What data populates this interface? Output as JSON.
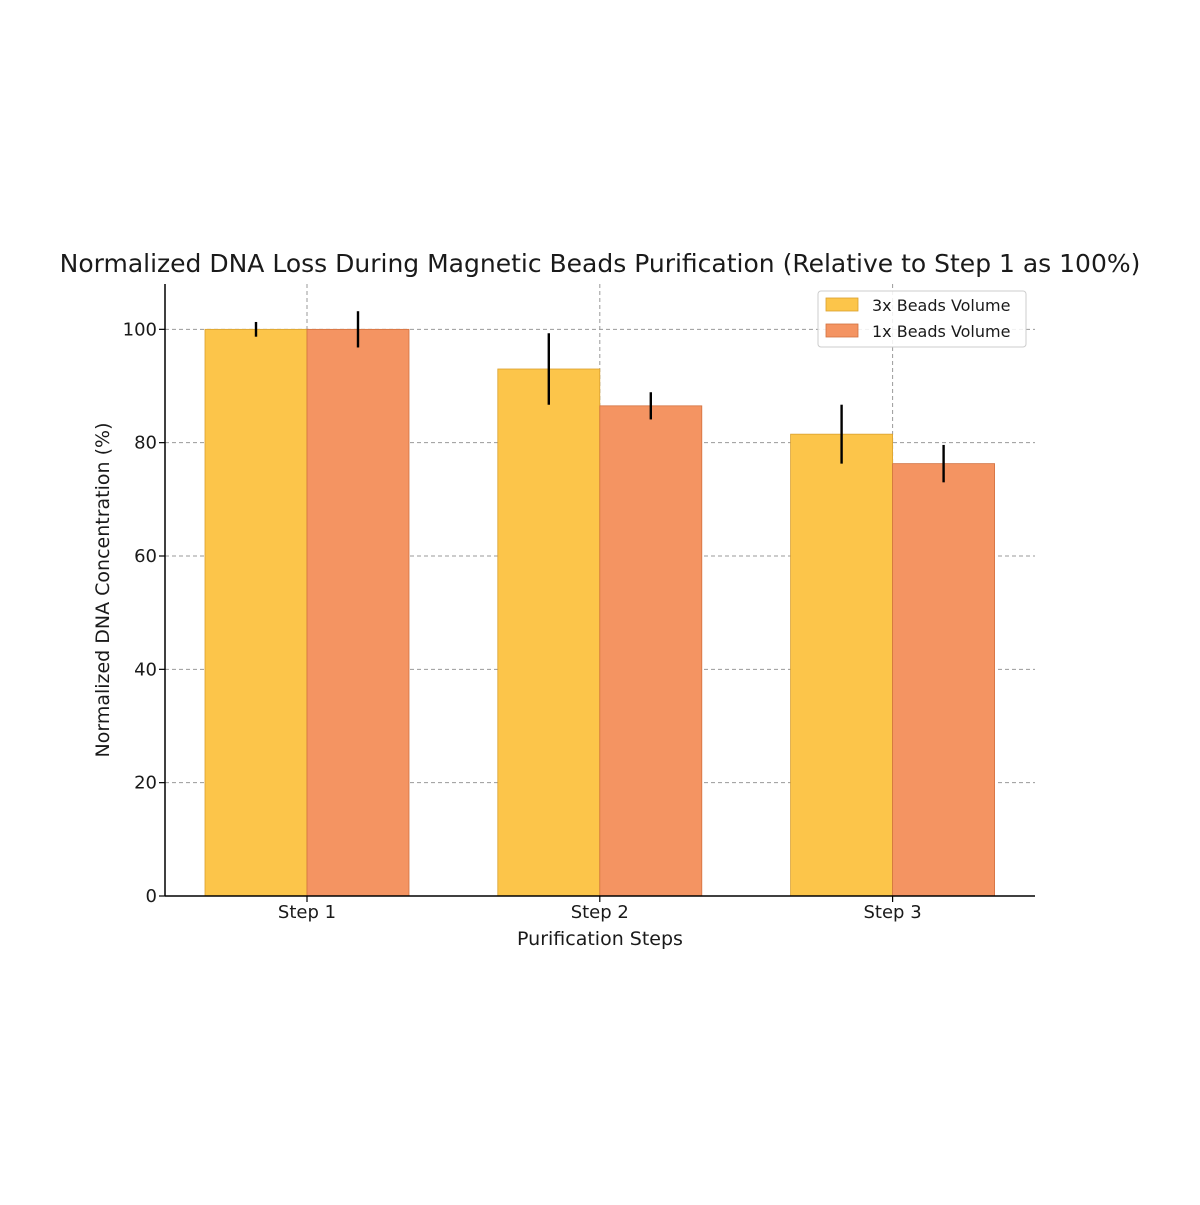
{
  "chart_data": {
    "type": "bar",
    "title": "Normalized DNA Loss During Magnetic Beads Purification (Relative to Step 1 as 100%)",
    "xlabel": "Purification Steps",
    "ylabel": "Normalized DNA Concentration (%)",
    "categories": [
      "Step 1",
      "Step 2",
      "Step 3"
    ],
    "ylim": [
      0,
      108
    ],
    "yticks": [
      0,
      20,
      40,
      60,
      80,
      100
    ],
    "grid": true,
    "legend_position": "top-right",
    "series": [
      {
        "name": "3x Beads Volume",
        "color": "#FCC54A",
        "edge": "#D9A02E",
        "values": [
          100,
          93,
          81.5
        ],
        "errors": [
          1.3,
          6.3,
          5.2
        ]
      },
      {
        "name": "1x Beads Volume",
        "color": "#F49462",
        "edge": "#D2703F",
        "values": [
          100,
          86.5,
          76.3
        ],
        "errors": [
          3.2,
          2.4,
          3.3
        ]
      }
    ]
  }
}
